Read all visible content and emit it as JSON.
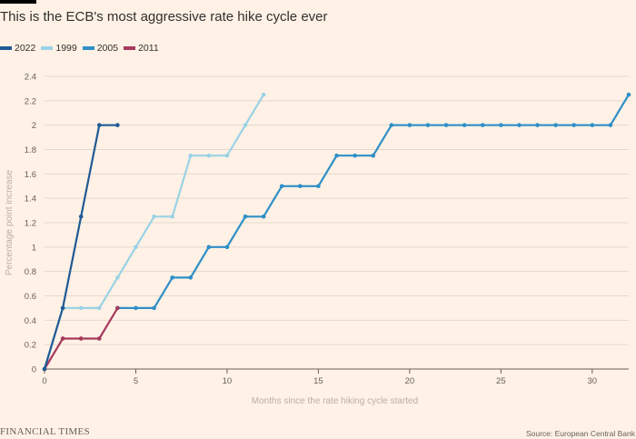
{
  "header": {
    "title": "This is the ECB's most aggressive rate hike cycle ever"
  },
  "footer": {
    "brand": "FINANCIAL TIMES",
    "source": "Source: European Central Bank"
  },
  "colors": {
    "background": "#FFF1E5",
    "grid": "#E3D9CF",
    "axis": "#66605C",
    "axis_label": "#B8AFA8",
    "2022": "#1F5A96",
    "1999": "#9AD2E6",
    "2005": "#2E8FC8",
    "2011": "#A63A5E"
  },
  "chart_data": {
    "type": "line",
    "title": "This is the ECB's most aggressive rate hike cycle ever",
    "xlabel": "Months since the rate hiking cycle started",
    "ylabel": "Percentage point increase",
    "xlim": [
      0,
      32
    ],
    "ylim": [
      0,
      2.4
    ],
    "x_ticks": [
      0,
      5,
      10,
      15,
      20,
      25,
      30
    ],
    "y_ticks": [
      0,
      0.2,
      0.4,
      0.6,
      0.8,
      1,
      1.2,
      1.4,
      1.6,
      1.8,
      2,
      2.2,
      2.4
    ],
    "y_tick_labels": [
      "0",
      "0.2",
      "0.4",
      "0.6",
      "0.8",
      "1",
      "1.2",
      "1.4",
      "1.6",
      "1.8",
      "2",
      "2.2",
      "2.4"
    ],
    "grid": true,
    "legend_position": "top-left",
    "series": [
      {
        "name": "2022",
        "x": [
          0,
          1,
          2,
          3,
          4
        ],
        "values": [
          0,
          0.5,
          1.25,
          2,
          2
        ]
      },
      {
        "name": "1999",
        "x": [
          0,
          1,
          2,
          3,
          4,
          5,
          6,
          7,
          8,
          9,
          10,
          11,
          12
        ],
        "values": [
          0,
          0.5,
          0.5,
          0.5,
          0.75,
          1,
          1.25,
          1.25,
          1.75,
          1.75,
          1.75,
          2,
          2.25
        ]
      },
      {
        "name": "2005",
        "x": [
          4,
          5,
          6,
          7,
          8,
          9,
          10,
          11,
          12,
          13,
          14,
          15,
          16,
          17,
          18,
          19,
          20,
          21,
          22,
          23,
          24,
          25,
          26,
          27,
          28,
          29,
          30,
          31,
          32
        ],
        "values": [
          0.5,
          0.5,
          0.5,
          0.75,
          0.75,
          1,
          1,
          1.25,
          1.25,
          1.5,
          1.5,
          1.5,
          1.75,
          1.75,
          1.75,
          2,
          2,
          2,
          2,
          2,
          2,
          2,
          2,
          2,
          2,
          2,
          2,
          2,
          2.25
        ]
      },
      {
        "name": "2011",
        "x": [
          0,
          1,
          2,
          3,
          4
        ],
        "values": [
          0,
          0.25,
          0.25,
          0.25,
          0.5
        ]
      }
    ]
  }
}
